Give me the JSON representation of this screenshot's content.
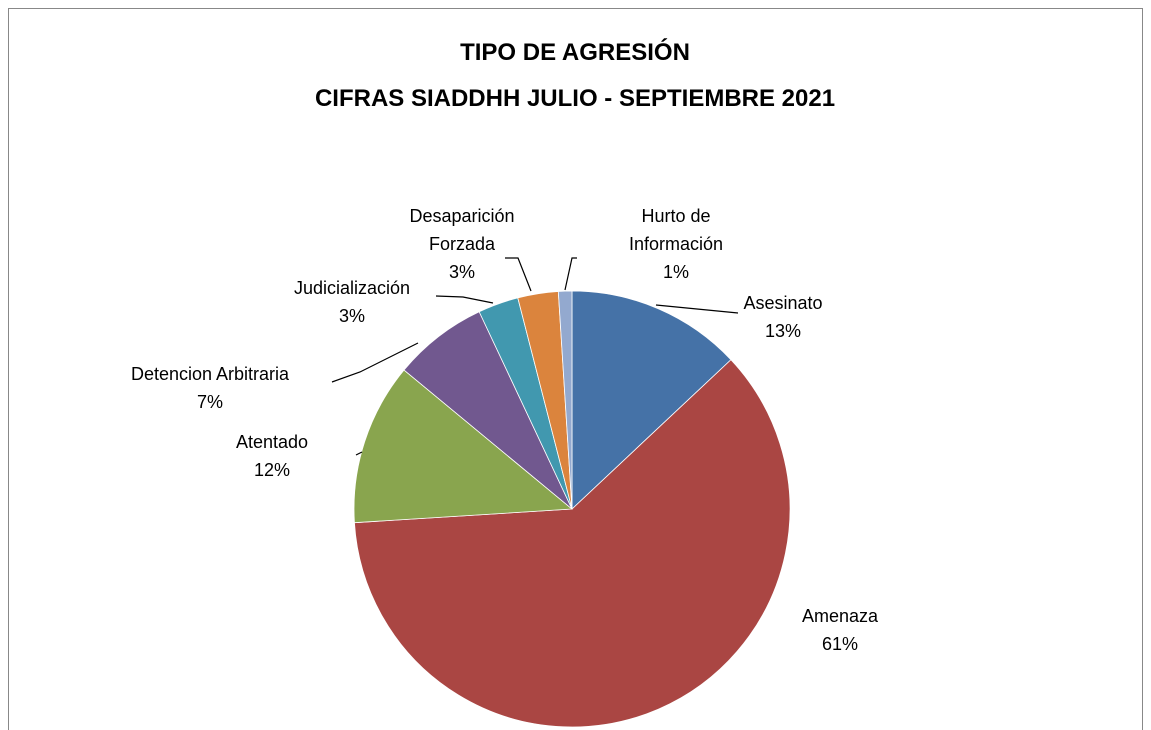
{
  "chart_data": {
    "type": "pie",
    "title": "TIPO DE AGRESIÓN",
    "subtitle": "CIFRAS SIADDHH JULIO - SEPTIEMBRE 2021",
    "categories": [
      "Asesinato",
      "Amenaza",
      "Atentado",
      "Detencion Arbitraria",
      "Judicialización",
      "Desaparición Forzada",
      "Hurto de Información"
    ],
    "values": [
      13,
      61,
      12,
      7,
      3,
      3,
      1
    ],
    "value_labels": [
      "13%",
      "61%",
      "12%",
      "7%",
      "3%",
      "3%",
      "1%"
    ],
    "colors": [
      "#4572a7",
      "#aa4643",
      "#89a54e",
      "#71588f",
      "#4198af",
      "#db843d",
      "#93a9cf"
    ]
  }
}
